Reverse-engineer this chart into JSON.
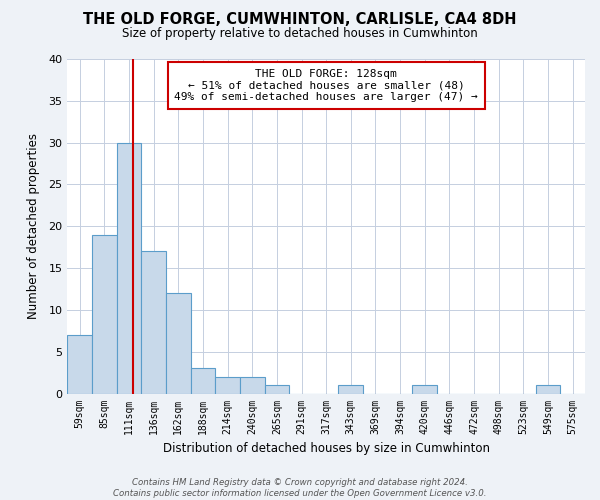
{
  "title": "THE OLD FORGE, CUMWHINTON, CARLISLE, CA4 8DH",
  "subtitle": "Size of property relative to detached houses in Cumwhinton",
  "xlabel": "Distribution of detached houses by size in Cumwhinton",
  "ylabel": "Number of detached properties",
  "categories": [
    "59sqm",
    "85sqm",
    "111sqm",
    "136sqm",
    "162sqm",
    "188sqm",
    "214sqm",
    "240sqm",
    "265sqm",
    "291sqm",
    "317sqm",
    "343sqm",
    "369sqm",
    "394sqm",
    "420sqm",
    "446sqm",
    "472sqm",
    "498sqm",
    "523sqm",
    "549sqm",
    "575sqm"
  ],
  "values": [
    7,
    19,
    30,
    17,
    12,
    3,
    2,
    2,
    1,
    0,
    0,
    1,
    0,
    0,
    1,
    0,
    0,
    0,
    0,
    1,
    0
  ],
  "bar_color": "#c8d9ea",
  "bar_edge_color": "#5b9dca",
  "vline_color": "#cc0000",
  "vline_pos": 2.17,
  "annotation_text": "THE OLD FORGE: 128sqm\n← 51% of detached houses are smaller (48)\n49% of semi-detached houses are larger (47) →",
  "annotation_box_color": "#ffffff",
  "annotation_box_edge_color": "#cc0000",
  "ylim": [
    0,
    40
  ],
  "yticks": [
    0,
    5,
    10,
    15,
    20,
    25,
    30,
    35,
    40
  ],
  "footer": "Contains HM Land Registry data © Crown copyright and database right 2024.\nContains public sector information licensed under the Open Government Licence v3.0.",
  "bg_color": "#eef2f7",
  "plot_bg_color": "#ffffff",
  "grid_color": "#c5cfe0"
}
